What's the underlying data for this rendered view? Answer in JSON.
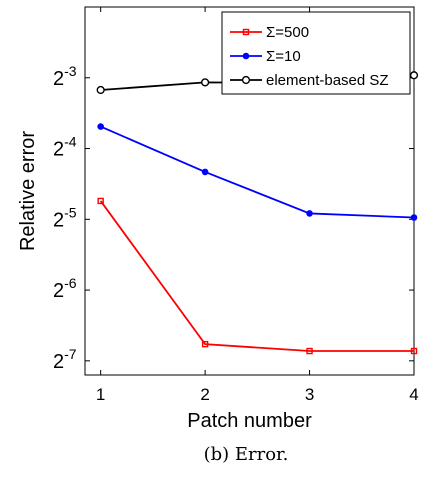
{
  "chart_data": {
    "type": "line",
    "title": "",
    "xlabel": "Patch number",
    "ylabel": "Relative error",
    "caption": "(b) Error.",
    "x": [
      1,
      2,
      3,
      4
    ],
    "xlim": [
      0.85,
      4.0
    ],
    "xticks": [
      "1",
      "2",
      "3",
      "4"
    ],
    "y_scale": "log2",
    "ylim": [
      0.0068,
      0.25
    ],
    "yticks": [
      {
        "value": 0.125,
        "base": "2",
        "exp": "-3"
      },
      {
        "value": 0.0625,
        "base": "2",
        "exp": "-4"
      },
      {
        "value": 0.03125,
        "base": "2",
        "exp": "-5"
      },
      {
        "value": 0.015625,
        "base": "2",
        "exp": "-6"
      },
      {
        "value": 0.0078125,
        "base": "2",
        "exp": "-7"
      }
    ],
    "grid": false,
    "legend_position": "top-right",
    "series": [
      {
        "name": "Σ=500",
        "color": "#ff0000",
        "marker": "square",
        "values": [
          0.0374,
          0.0092,
          0.0086,
          0.0086
        ]
      },
      {
        "name": "Σ=10",
        "color": "#0000ff",
        "marker": "dot",
        "values": [
          0.0775,
          0.0497,
          0.0331,
          0.0318
        ]
      },
      {
        "name": "element-based SZ",
        "color": "#000000",
        "marker": "circle",
        "values": [
          0.1109,
          0.1195,
          0.1185,
          0.1281
        ]
      }
    ]
  }
}
